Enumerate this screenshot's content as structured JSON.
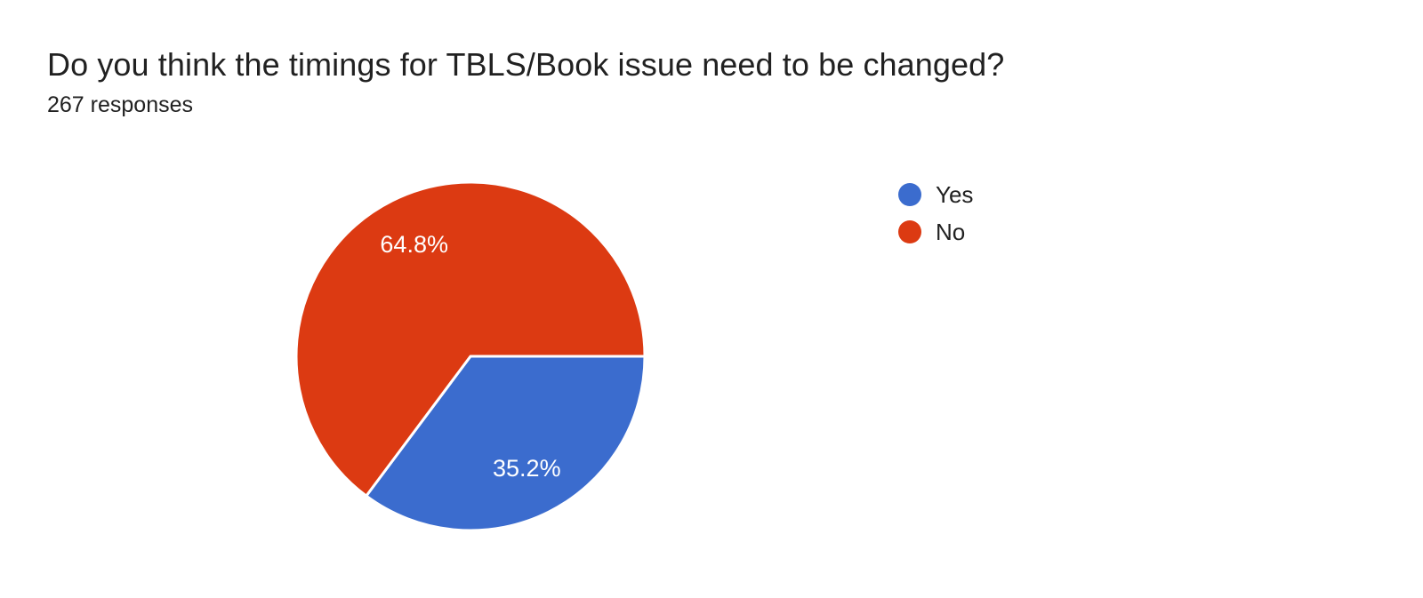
{
  "page": {
    "background": "#ffffff"
  },
  "chart_data": {
    "type": "pie",
    "title": "Do you think the timings for TBLS/Book issue need to be changed?",
    "subtitle": "267 responses",
    "responses_count": 267,
    "labels": [
      "Yes",
      "No"
    ],
    "values": [
      35.2,
      64.8
    ],
    "value_unit": "percent",
    "colors": [
      "#3b6cce",
      "#dc3a12"
    ],
    "start_angle_deg": 0,
    "direction": "clockwise",
    "slice_label_color": "#ffffff",
    "slice_gap_color": "#ffffff",
    "legend_position": "right",
    "legend_entries": [
      "Yes",
      "No"
    ]
  }
}
